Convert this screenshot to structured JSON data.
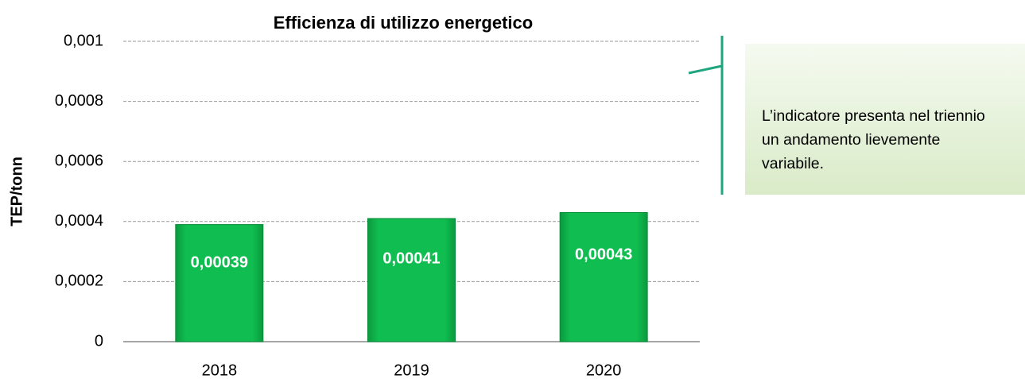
{
  "chart_data": {
    "type": "bar",
    "title": "Efficienza di utilizzo energetico",
    "ylabel": "TEP/tonn",
    "categories": [
      "2018",
      "2019",
      "2020"
    ],
    "values": [
      0.00039,
      0.00041,
      0.00043
    ],
    "value_labels": [
      "0,00039",
      "0,00041",
      "0,00043"
    ],
    "color": "#10bd50",
    "ylim": [
      0,
      0.001
    ],
    "yticks": [
      0,
      {
        "value": 0.0002,
        "label": "0,0002"
      },
      {
        "value": 0.0004,
        "label": "0,0004"
      },
      {
        "value": 0.0006,
        "label": "0,0006"
      },
      {
        "value": 0.0008,
        "label": "0,0008"
      },
      {
        "value": 0.001,
        "label": "0,001"
      }
    ],
    "grid": true,
    "annotation": "L’indicatore presenta nel triennio un andamento lievemente variabile."
  }
}
